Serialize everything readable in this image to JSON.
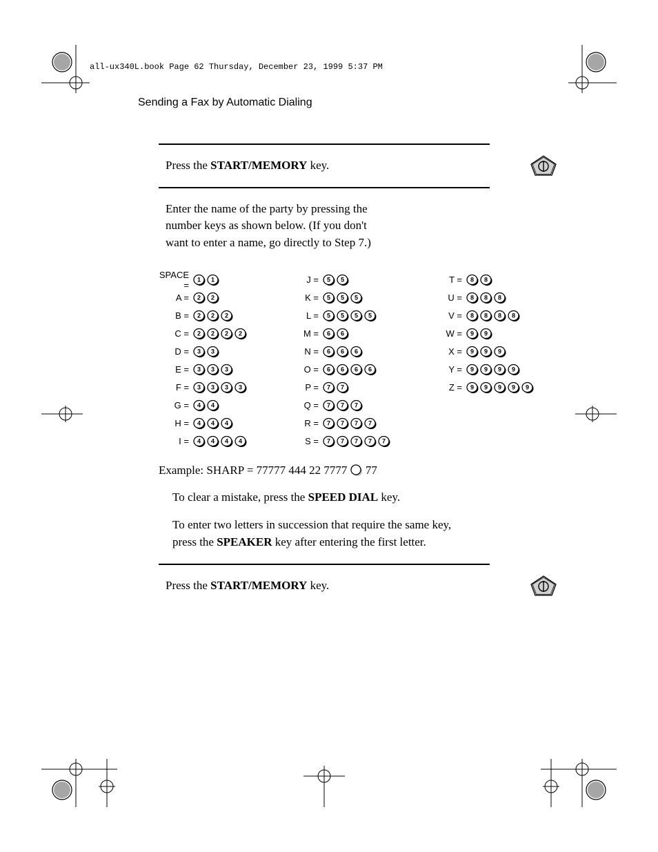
{
  "header": {
    "file_info": "all-ux340L.book  Page 62  Thursday, December 23, 1999  5:37 PM"
  },
  "section_title": "Sending a Fax by Automatic Dialing",
  "step5": {
    "text_pre": "Press the ",
    "key_label": "START/MEMORY",
    "text_post": " key."
  },
  "step6": {
    "text": "Enter the name of the party by pressing the number keys as shown below. (If you don't want to enter a name, go directly to Step 7.)"
  },
  "keypad": {
    "columns": [
      {
        "rows": [
          {
            "label": "SPACE =",
            "keys": [
              "1",
              "1"
            ]
          },
          {
            "label": "A =",
            "keys": [
              "2",
              "2"
            ]
          },
          {
            "label": "B =",
            "keys": [
              "2",
              "2",
              "2"
            ]
          },
          {
            "label": "C =",
            "keys": [
              "2",
              "2",
              "2",
              "2"
            ]
          },
          {
            "label": "D =",
            "keys": [
              "3",
              "3"
            ]
          },
          {
            "label": "E =",
            "keys": [
              "3",
              "3",
              "3"
            ]
          },
          {
            "label": "F =",
            "keys": [
              "3",
              "3",
              "3",
              "3"
            ]
          },
          {
            "label": "G =",
            "keys": [
              "4",
              "4"
            ]
          },
          {
            "label": "H =",
            "keys": [
              "4",
              "4",
              "4"
            ]
          },
          {
            "label": "I =",
            "keys": [
              "4",
              "4",
              "4",
              "4"
            ]
          }
        ]
      },
      {
        "rows": [
          {
            "label": "J =",
            "keys": [
              "5",
              "5"
            ]
          },
          {
            "label": "K =",
            "keys": [
              "5",
              "5",
              "5"
            ]
          },
          {
            "label": "L =",
            "keys": [
              "5",
              "5",
              "5",
              "5"
            ]
          },
          {
            "label": "M =",
            "keys": [
              "6",
              "6"
            ]
          },
          {
            "label": "N =",
            "keys": [
              "6",
              "6",
              "6"
            ]
          },
          {
            "label": "O =",
            "keys": [
              "6",
              "6",
              "6",
              "6"
            ]
          },
          {
            "label": "P =",
            "keys": [
              "7",
              "7"
            ]
          },
          {
            "label": "Q =",
            "keys": [
              "7",
              "7",
              "7"
            ]
          },
          {
            "label": "R =",
            "keys": [
              "7",
              "7",
              "7",
              "7"
            ]
          },
          {
            "label": "S =",
            "keys": [
              "7",
              "7",
              "7",
              "7",
              "7"
            ]
          }
        ]
      },
      {
        "rows": [
          {
            "label": "T =",
            "keys": [
              "8",
              "8"
            ]
          },
          {
            "label": "U =",
            "keys": [
              "8",
              "8",
              "8"
            ]
          },
          {
            "label": "V =",
            "keys": [
              "8",
              "8",
              "8",
              "8"
            ]
          },
          {
            "label": "W =",
            "keys": [
              "9",
              "9"
            ]
          },
          {
            "label": "X =",
            "keys": [
              "9",
              "9",
              "9"
            ]
          },
          {
            "label": "Y =",
            "keys": [
              "9",
              "9",
              "9",
              "9"
            ]
          },
          {
            "label": "Z =",
            "keys": [
              "9",
              "9",
              "9",
              "9",
              "9"
            ]
          }
        ]
      }
    ]
  },
  "example": {
    "pre": "Example: SHARP = 77777  444  22  7777 ",
    "post": "     77"
  },
  "tips": {
    "tip1_pre": "To clear a mistake, press the ",
    "tip1_key": "SPEED DIAL",
    "tip1_post": " key.",
    "tip2_pre": "To enter two letters in succession that require the same key, press the ",
    "tip2_key": "SPEAKER",
    "tip2_post": " key after entering the first letter."
  },
  "step7": {
    "text_pre": "Press the ",
    "key_label": "START/MEMORY",
    "text_post": " key."
  },
  "icons": {
    "start_memory": {
      "fill": "#d0d0d0",
      "stroke": "#000000",
      "symbol_stroke": "#000000"
    },
    "numkey": {
      "fill": "#ffffff",
      "shadow": "#000000",
      "stroke": "#000000",
      "text_color": "#000000",
      "font_size": 9
    },
    "speaker_circle": {
      "fill": "#ffffff",
      "stroke": "#000000"
    }
  },
  "colors": {
    "text": "#000000",
    "bg": "#ffffff",
    "rule": "#000000"
  },
  "crop_marks": {
    "positions": [
      "top-left",
      "top-right",
      "mid-left",
      "mid-right",
      "bottom-left",
      "bottom-right",
      "bottom-center"
    ]
  }
}
